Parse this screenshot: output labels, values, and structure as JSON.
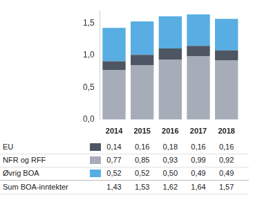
{
  "chart_data": {
    "type": "bar",
    "stacked": true,
    "grid": false,
    "categories": [
      "2014",
      "2015",
      "2016",
      "2017",
      "2018"
    ],
    "series": [
      {
        "name": "EU",
        "color": "#4f5663",
        "values": [
          0.14,
          0.16,
          0.18,
          0.16,
          0.16
        ],
        "value_labels": [
          "0,14",
          "0,16",
          "0,18",
          "0,16",
          "0,16"
        ]
      },
      {
        "name": "NFR og RFF",
        "color": "#a7adb8",
        "values": [
          0.77,
          0.85,
          0.93,
          0.99,
          0.92
        ],
        "value_labels": [
          "0,77",
          "0,85",
          "0,93",
          "0,99",
          "0,92"
        ]
      },
      {
        "name": "Øvrig BOA",
        "color": "#58aee2",
        "values": [
          0.52,
          0.52,
          0.5,
          0.49,
          0.49
        ],
        "value_labels": [
          "0,52",
          "0,52",
          "0,50",
          "0,49",
          "0,49"
        ]
      }
    ],
    "totals": {
      "name": "Sum BOA-inntekter",
      "values": [
        1.43,
        1.53,
        1.62,
        1.64,
        1.57
      ],
      "value_labels": [
        "1,43",
        "1,53",
        "1,62",
        "1,64",
        "1,57"
      ]
    },
    "ylim": [
      0,
      1.7
    ],
    "yticks": [
      {
        "value": 0,
        "label": "0,0"
      },
      {
        "value": 0.5,
        "label": "0,5"
      },
      {
        "value": 1,
        "label": "1,0"
      },
      {
        "value": 1.5,
        "label": "1,5"
      }
    ]
  }
}
